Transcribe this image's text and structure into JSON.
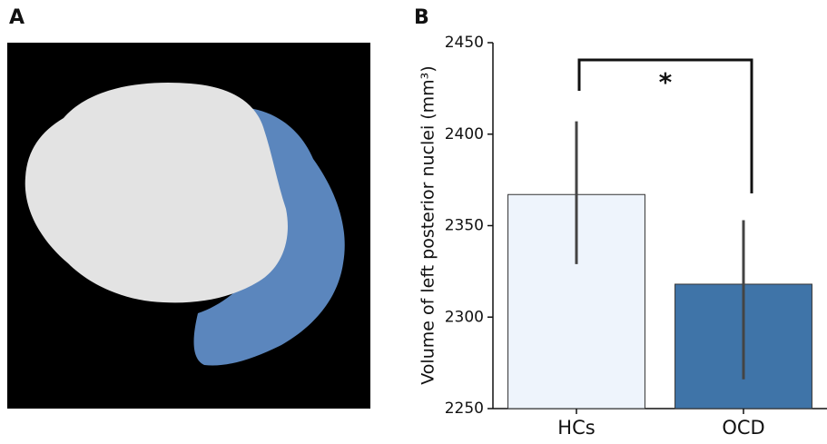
{
  "panel_labels": {
    "a": "A",
    "b": "B"
  },
  "chart_data": {
    "type": "bar",
    "ylabel": "Volume of left posterior nuclei (mm³)",
    "categories": [
      "HCs",
      "OCD"
    ],
    "values": [
      2367,
      2318
    ],
    "ci_low": [
      2329,
      2266
    ],
    "ci_high": [
      2407,
      2353
    ],
    "colors": [
      "#eef4fc",
      "#3f74a8"
    ],
    "ylim": [
      2250,
      2450
    ],
    "yticks": [
      2250,
      2300,
      2350,
      2400,
      2450
    ],
    "annotation": "*"
  }
}
